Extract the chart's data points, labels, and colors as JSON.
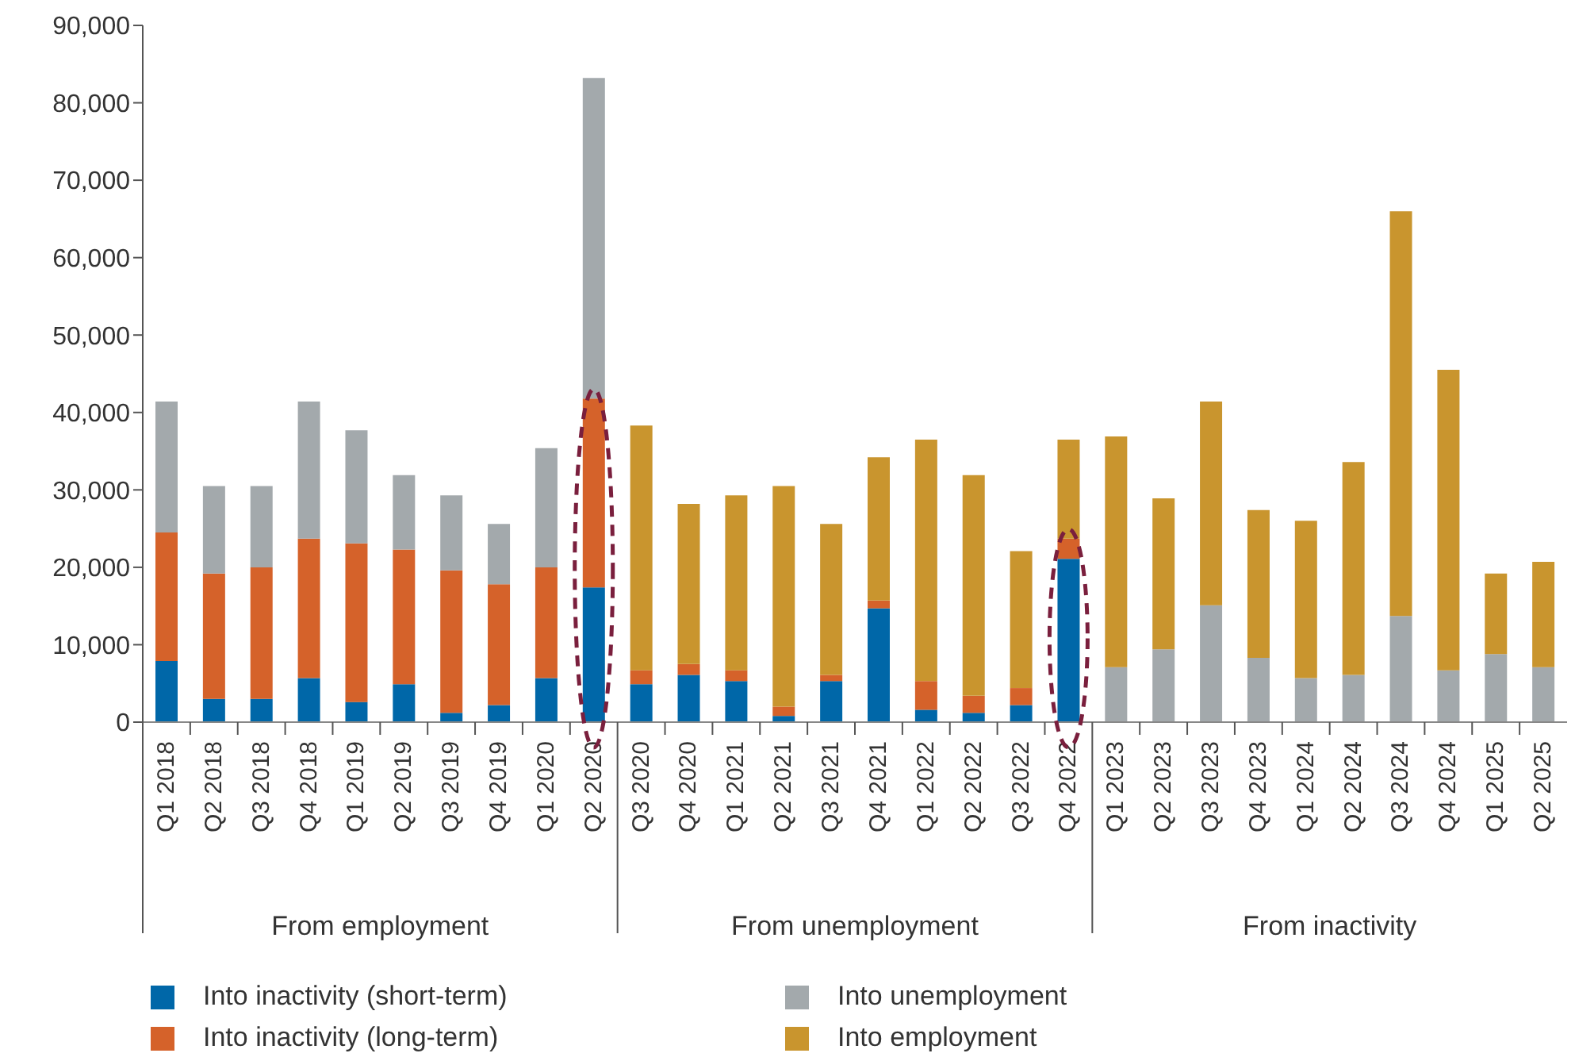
{
  "chart_data": {
    "type": "bar",
    "stacked": true,
    "categories": [
      "Q1 2018",
      "Q2 2018",
      "Q3 2018",
      "Q4 2018",
      "Q1 2019",
      "Q2 2019",
      "Q3 2019",
      "Q4 2019",
      "Q1 2020",
      "Q2 2020",
      "Q3 2020",
      "Q4 2020",
      "Q1 2021",
      "Q2 2021",
      "Q3 2021",
      "Q4 2021",
      "Q1 2022",
      "Q2 2022",
      "Q3 2022",
      "Q4 2022",
      "Q1 2023",
      "Q2 2023",
      "Q3 2023",
      "Q4 2023",
      "Q1 2024",
      "Q2 2024",
      "Q3 2024",
      "Q4 2024",
      "Q1 2025",
      "Q2 2025"
    ],
    "series": [
      {
        "name": "Into inactivity (short-term)",
        "color": "#0067a8",
        "values": [
          7900,
          3000,
          3000,
          5700,
          2600,
          4900,
          1200,
          2200,
          5700,
          17400,
          4900,
          6100,
          5300,
          800,
          5300,
          14700,
          1600,
          1200,
          2200,
          21100,
          null,
          null,
          null,
          null,
          null,
          null,
          null,
          null,
          null,
          null
        ]
      },
      {
        "name": "Into inactivity (long-term)",
        "color": "#d5622a",
        "values": [
          16600,
          16200,
          17000,
          18000,
          20500,
          17400,
          18400,
          15600,
          14300,
          24400,
          1800,
          1400,
          1400,
          1200,
          800,
          1000,
          3700,
          2200,
          2200,
          2600,
          null,
          null,
          null,
          null,
          null,
          null,
          null,
          null,
          null,
          null
        ]
      },
      {
        "name": "Into unemployment",
        "color": "#a3a9ac",
        "values": [
          16900,
          11300,
          10500,
          17700,
          14600,
          9600,
          9700,
          7800,
          15400,
          41400,
          null,
          null,
          null,
          null,
          null,
          null,
          null,
          null,
          null,
          null,
          7100,
          9400,
          15100,
          8300,
          5700,
          6100,
          13700,
          6700,
          8800,
          7100
        ]
      },
      {
        "name": "Into employment",
        "color": "#c9952e",
        "values": [
          null,
          null,
          null,
          null,
          null,
          null,
          null,
          null,
          null,
          null,
          31600,
          20700,
          22600,
          28500,
          19500,
          18500,
          31200,
          28500,
          17700,
          12800,
          29800,
          19500,
          26300,
          19100,
          20300,
          27500,
          52300,
          38800,
          10400,
          13600
        ]
      }
    ],
    "ylim": [
      0,
      90000
    ],
    "yticks": [
      0,
      {
        "value": 10000,
        "label": "10,000"
      },
      {
        "value": 20000,
        "label": "20,000"
      },
      {
        "value": 30000,
        "label": "30,000"
      },
      {
        "value": 40000,
        "label": "40,000"
      },
      {
        "value": 50000,
        "label": "50,000"
      },
      {
        "value": 60000,
        "label": "60,000"
      },
      {
        "value": 70000,
        "label": "70,000"
      },
      {
        "value": 80000,
        "label": "80,000"
      },
      {
        "value": 90000,
        "label": "90,000"
      }
    ],
    "annotations": [
      "From employment",
      "From unemployment",
      "From inactivity"
    ],
    "legend": "bottom"
  }
}
